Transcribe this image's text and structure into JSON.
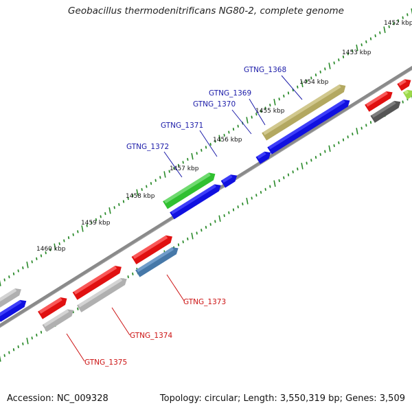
{
  "title": "Geobacillus thermodenitrificans NG80-2, complete genome",
  "footer": {
    "accession": "Accession: NC_009328",
    "topology": "Topology: circular; Length: 3,550,319 bp; Genes: 3,509"
  },
  "colors": {
    "backbone": "#808080",
    "tick": "#2a8a2a",
    "label_top": "#1a1aa8",
    "label_bottom": "#cc1111",
    "leader_top": "#1a1aa8",
    "leader_bottom": "#cc1111"
  },
  "kbp_ticks": [
    "1452 kbp",
    "1453 kbp",
    "1454 kbp",
    "1455 kbp",
    "1456 kbp",
    "1457 kbp",
    "1458 kbp",
    "1459 kbp",
    "1460 kbp"
  ],
  "genes_top": [
    "GTNG_1368",
    "GTNG_1369",
    "GTNG_1370",
    "GTNG_1371",
    "GTNG_1372"
  ],
  "genes_bottom": [
    "GTNG_1373",
    "GTNG_1374",
    "GTNG_1375"
  ]
}
